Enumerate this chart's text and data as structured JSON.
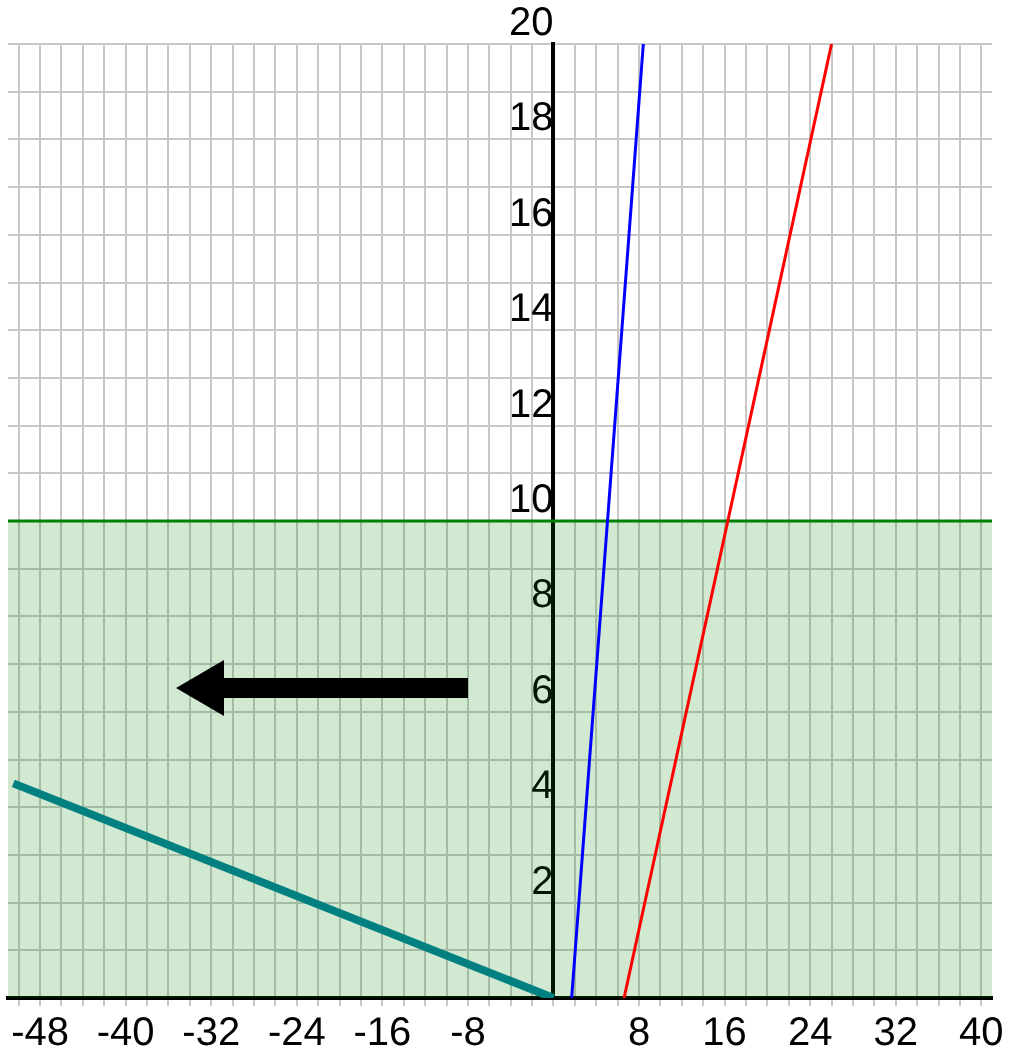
{
  "chart_data": {
    "type": "line",
    "xlim": [
      -51,
      41
    ],
    "ylim": [
      0,
      20
    ],
    "xticks": [
      {
        "value": -50,
        "label": null
      },
      {
        "value": -48,
        "label": "-48"
      },
      {
        "value": -46,
        "label": null
      },
      {
        "value": -44,
        "label": null
      },
      {
        "value": -42,
        "label": null
      },
      {
        "value": -40,
        "label": "-40"
      },
      {
        "value": -38,
        "label": null
      },
      {
        "value": -36,
        "label": null
      },
      {
        "value": -34,
        "label": null
      },
      {
        "value": -32,
        "label": "-32"
      },
      {
        "value": -30,
        "label": null
      },
      {
        "value": -28,
        "label": null
      },
      {
        "value": -26,
        "label": null
      },
      {
        "value": -24,
        "label": "-24"
      },
      {
        "value": -22,
        "label": null
      },
      {
        "value": -20,
        "label": null
      },
      {
        "value": -18,
        "label": null
      },
      {
        "value": -16,
        "label": "-16"
      },
      {
        "value": -14,
        "label": null
      },
      {
        "value": -12,
        "label": null
      },
      {
        "value": -10,
        "label": null
      },
      {
        "value": -8,
        "label": "-8"
      },
      {
        "value": -6,
        "label": null
      },
      {
        "value": -4,
        "label": null
      },
      {
        "value": -2,
        "label": null
      },
      {
        "value": 0,
        "label": null
      },
      {
        "value": 2,
        "label": null
      },
      {
        "value": 4,
        "label": null
      },
      {
        "value": 6,
        "label": null
      },
      {
        "value": 8,
        "label": "8"
      },
      {
        "value": 10,
        "label": null
      },
      {
        "value": 12,
        "label": null
      },
      {
        "value": 14,
        "label": null
      },
      {
        "value": 16,
        "label": "16"
      },
      {
        "value": 18,
        "label": null
      },
      {
        "value": 20,
        "label": null
      },
      {
        "value": 22,
        "label": null
      },
      {
        "value": 24,
        "label": "24"
      },
      {
        "value": 26,
        "label": null
      },
      {
        "value": 28,
        "label": null
      },
      {
        "value": 30,
        "label": null
      },
      {
        "value": 32,
        "label": "32"
      },
      {
        "value": 34,
        "label": null
      },
      {
        "value": 36,
        "label": null
      },
      {
        "value": 38,
        "label": null
      },
      {
        "value": 40,
        "label": "40"
      }
    ],
    "yticks": [
      {
        "value": 0,
        "label": null
      },
      {
        "value": 1,
        "label": null
      },
      2,
      {
        "value": 3,
        "label": null
      },
      4,
      {
        "value": 5,
        "label": null
      },
      6,
      {
        "value": 7,
        "label": null
      },
      8,
      {
        "value": 9,
        "label": null
      },
      10,
      {
        "value": 11,
        "label": null
      },
      12,
      {
        "value": 13,
        "label": null
      },
      14,
      {
        "value": 15,
        "label": null
      },
      16,
      {
        "value": 17,
        "label": null
      },
      18,
      {
        "value": 19,
        "label": null
      },
      20
    ],
    "grid": true,
    "marker": "none",
    "line_style": "solid",
    "series": [
      {
        "color": "#ff0000",
        "x": [
          6.6,
          26
        ],
        "values": [
          0,
          20
        ]
      },
      {
        "color": "#0000ff",
        "x": [
          1.7,
          8.4
        ],
        "values": [
          0,
          20
        ]
      },
      {
        "color": "#008080",
        "x": [
          -50.5,
          0
        ],
        "values": [
          4.5,
          0
        ]
      }
    ],
    "ref_lines": [
      {
        "axis": "y",
        "value": 10,
        "color": "#008000"
      }
    ],
    "bands": [
      {
        "axis": "y",
        "from": 0,
        "to": 10,
        "color": "#008000"
      }
    ]
  }
}
